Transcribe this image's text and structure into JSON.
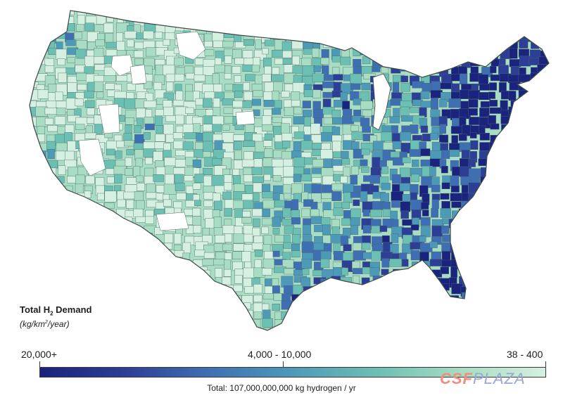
{
  "map": {
    "title_prefix": "Total H",
    "title_sub": "2",
    "title_suffix": " Demand",
    "unit_prefix": "(kg/km",
    "unit_sup": "2",
    "unit_suffix": "/year)"
  },
  "legend": {
    "high_label": "20,000+",
    "mid_label": "4,000 - 10,000",
    "low_label": "38 - 400",
    "colors": [
      "#1a237e",
      "#2c3e95",
      "#3f6fb3",
      "#4d9ab8",
      "#6cbfb3",
      "#a8dcc3",
      "#d5f0e1"
    ],
    "total_note": "Total: 107,000,000,000 kg hydrogen / yr"
  },
  "watermark": {
    "part1": "CSF",
    "part2": "PLAZA"
  }
}
